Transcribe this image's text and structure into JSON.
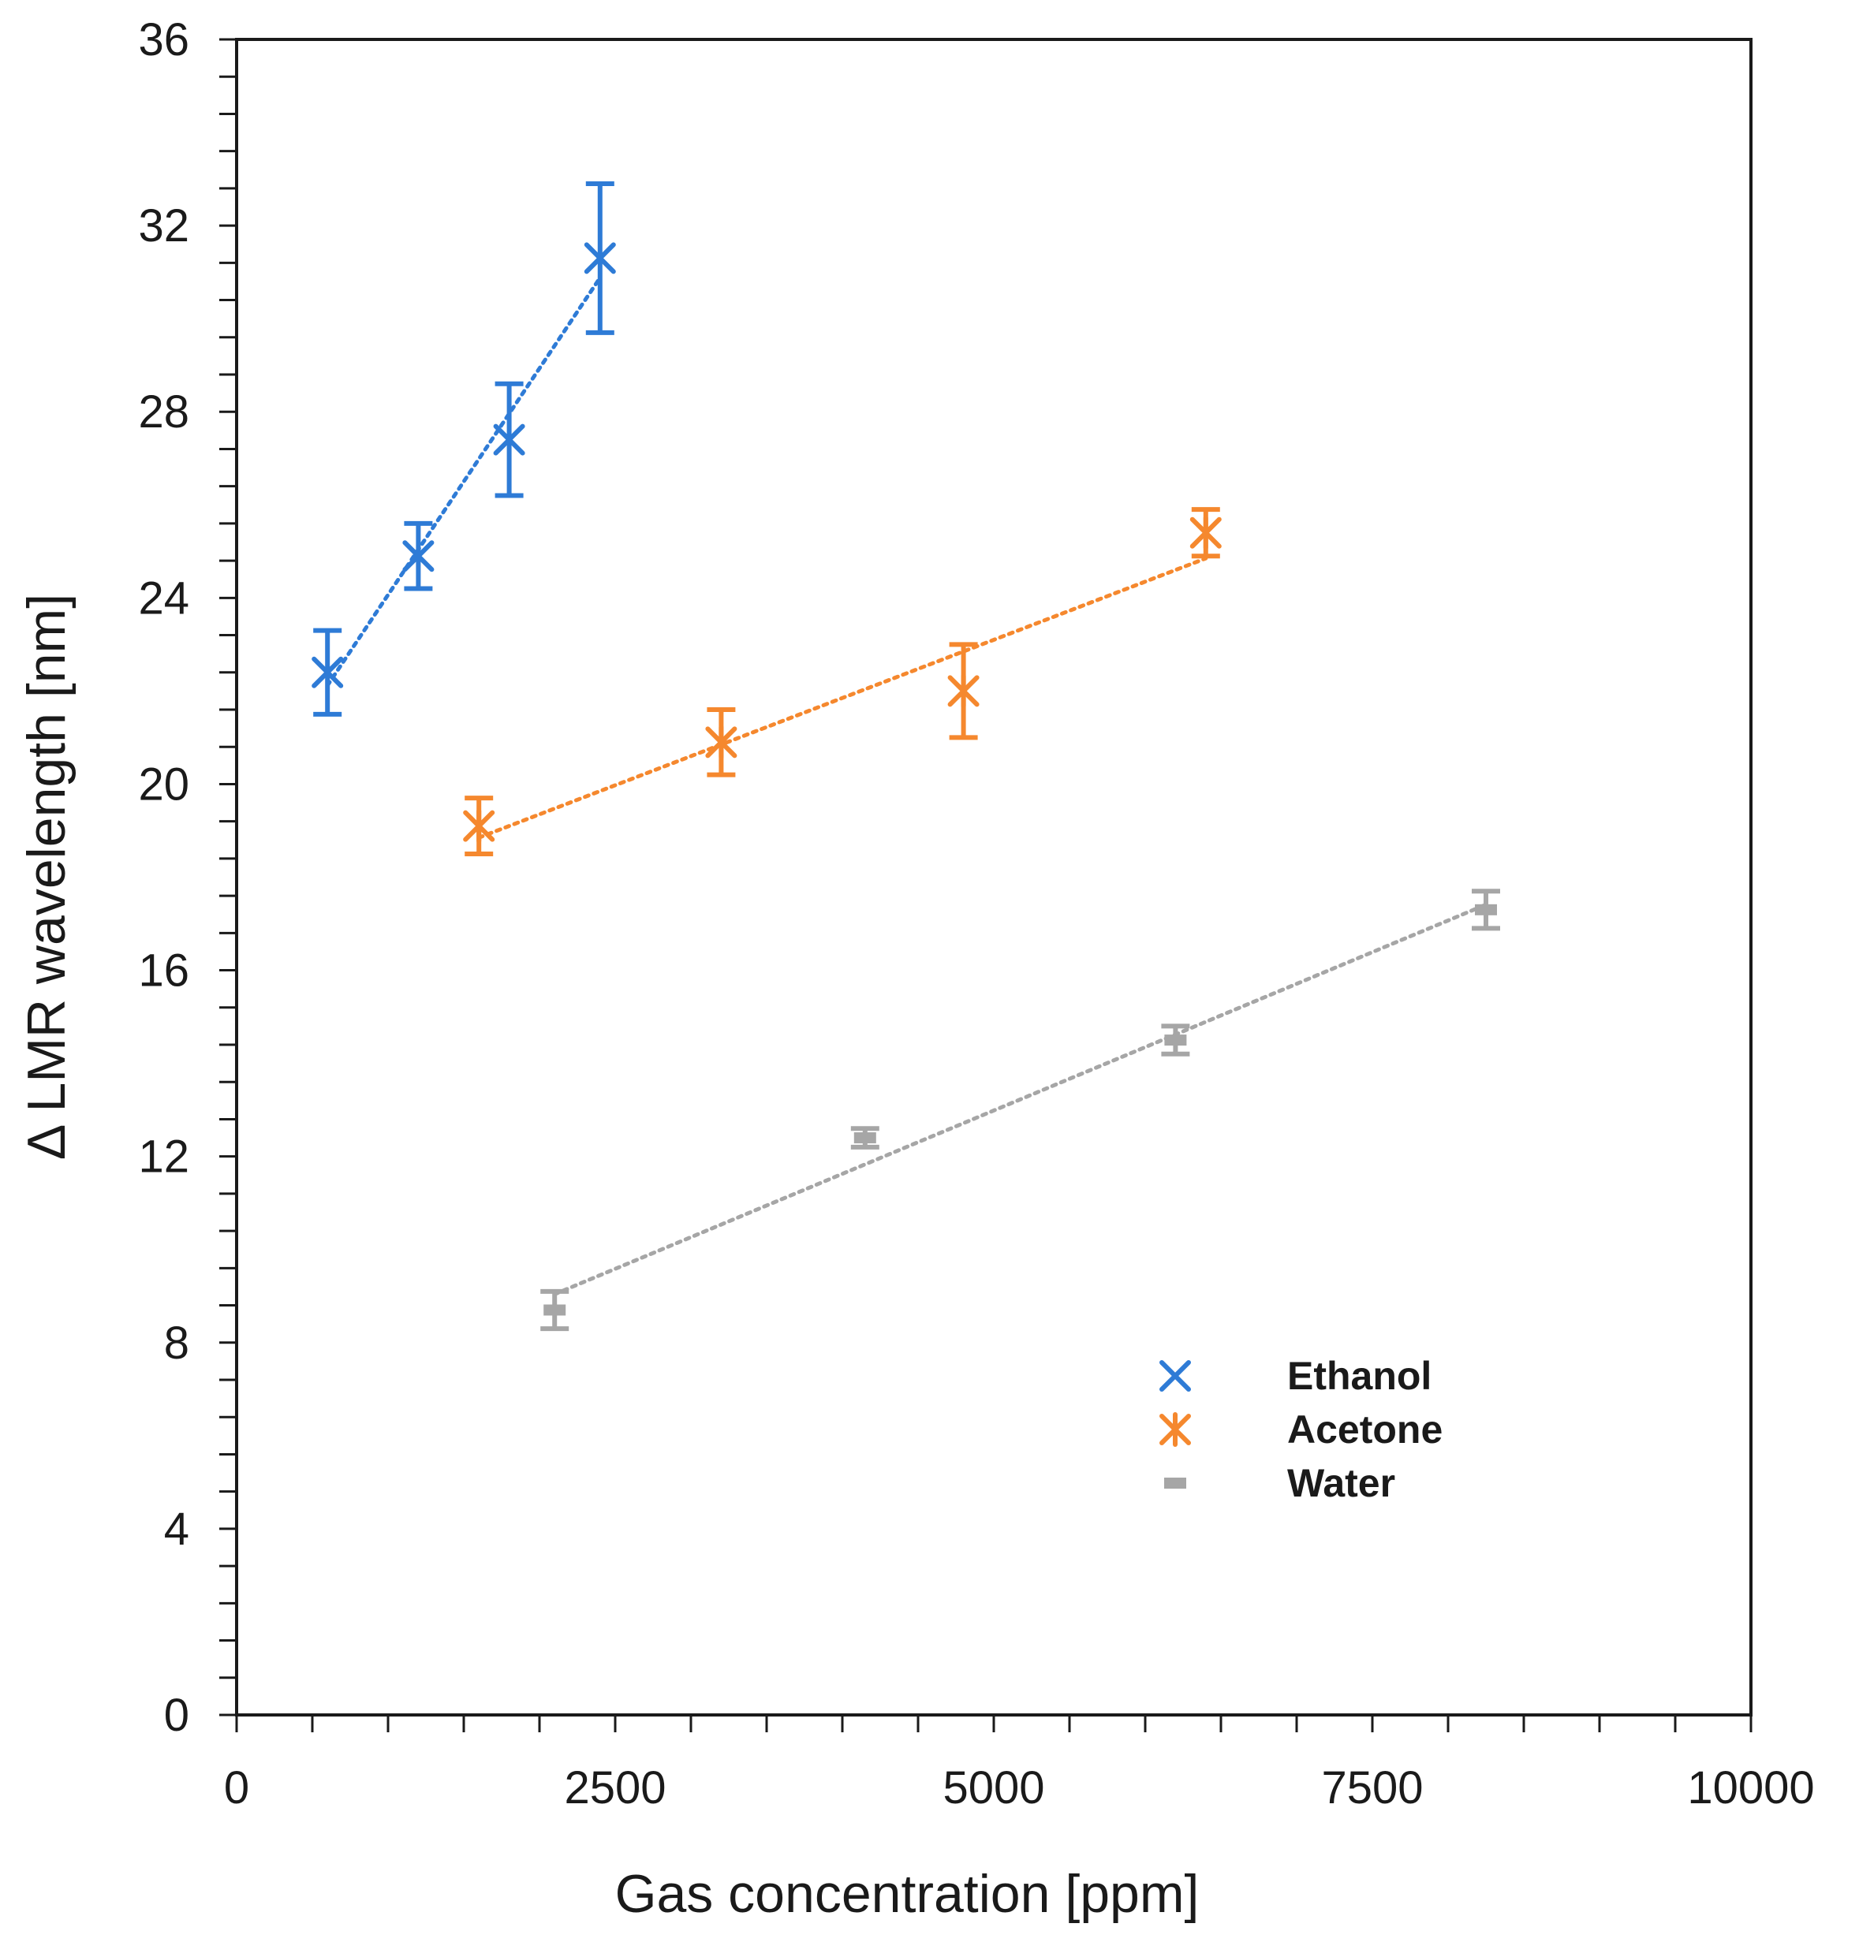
{
  "chart_data": {
    "type": "scatter",
    "title": "",
    "xlabel": "Gas concentration [ppm]",
    "ylabel": "Δ LMR wavelength [nm]",
    "xlim": [
      0,
      10000
    ],
    "ylim": [
      0,
      36
    ],
    "x_major_ticks": [
      0,
      2500,
      5000,
      7500,
      10000
    ],
    "x_tick_labels": [
      "0",
      "2500",
      "5000",
      "7500",
      "10000"
    ],
    "x_minor_step": 500,
    "y_major_ticks": [
      0,
      4,
      8,
      12,
      16,
      20,
      24,
      28,
      32,
      36
    ],
    "y_tick_labels": [
      "0",
      "4",
      "8",
      "12",
      "16",
      "20",
      "24",
      "28",
      "32",
      "36"
    ],
    "y_minor_step": 0.8,
    "grid": false,
    "legend_position": "lower-right",
    "trendline": "linear, dotted",
    "series": [
      {
        "name": "Ethanol",
        "color": "#2E7BD6",
        "marker": "x",
        "x": [
          600,
          1200,
          1800,
          2400
        ],
        "y": [
          22.4,
          24.9,
          27.4,
          31.3
        ],
        "yerr": [
          0.9,
          0.7,
          1.2,
          1.6
        ]
      },
      {
        "name": "Acetone",
        "color": "#F5882E",
        "marker": "asterisk",
        "x": [
          1600,
          3200,
          4800,
          6400
        ],
        "y": [
          19.1,
          20.9,
          22.0,
          25.4
        ],
        "yerr": [
          0.6,
          0.7,
          1.0,
          0.5
        ]
      },
      {
        "name": "Water",
        "color": "#A6A6A6",
        "marker": "dash",
        "x": [
          2100,
          4150,
          6200,
          8250
        ],
        "y": [
          8.7,
          12.4,
          14.5,
          17.3
        ],
        "yerr": [
          0.4,
          0.2,
          0.3,
          0.4
        ]
      }
    ]
  }
}
